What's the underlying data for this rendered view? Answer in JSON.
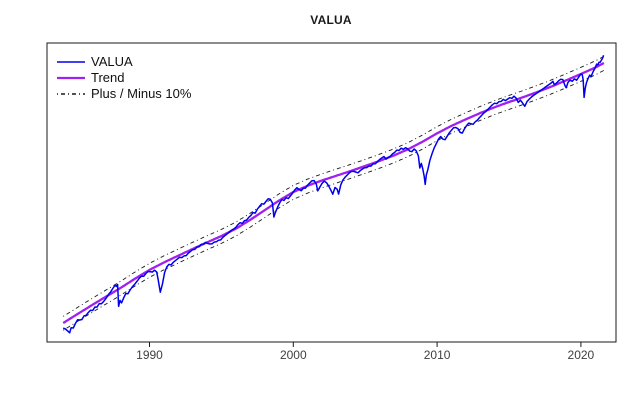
{
  "chart_data": {
    "type": "line",
    "title": "VALUA",
    "x_axis": {
      "ticks": [
        1990,
        2000,
        2010,
        2020
      ],
      "tick_labels": [
        "1990",
        "2000",
        "2010",
        "2020"
      ]
    },
    "y_axis": {
      "scale": "log",
      "labels_shown": false
    },
    "grid": false,
    "legend_position": "topleft",
    "band_pct": 10,
    "series": [
      {
        "name": "VALUA",
        "color": "#0000EE",
        "style": "solid",
        "width": 1.5
      },
      {
        "name": "Trend",
        "color": "#A020F0",
        "style": "solid",
        "width": 2.3
      },
      {
        "name": "Plus / Minus 10%",
        "color": "#1a1a1a",
        "style": "dotdash",
        "width": 0.9
      }
    ],
    "trend_points": [
      [
        1984,
        239
      ],
      [
        1985,
        272
      ],
      [
        1986,
        309
      ],
      [
        1987,
        350
      ],
      [
        1988,
        396
      ],
      [
        1989,
        452
      ],
      [
        1990,
        512
      ],
      [
        1991,
        570
      ],
      [
        1992,
        628
      ],
      [
        1993,
        692
      ],
      [
        1994,
        760
      ],
      [
        1995,
        833
      ],
      [
        1996,
        925
      ],
      [
        1997,
        1050
      ],
      [
        1998,
        1205
      ],
      [
        1999,
        1385
      ],
      [
        2000,
        1567
      ],
      [
        2001,
        1715
      ],
      [
        2002,
        1850
      ],
      [
        2003,
        1980
      ],
      [
        2004,
        2120
      ],
      [
        2005,
        2276
      ],
      [
        2006,
        2450
      ],
      [
        2007,
        2650
      ],
      [
        2008,
        2900
      ],
      [
        2009,
        3230
      ],
      [
        2010,
        3640
      ],
      [
        2011,
        4050
      ],
      [
        2012,
        4450
      ],
      [
        2013,
        4870
      ],
      [
        2014,
        5290
      ],
      [
        2015,
        5703
      ],
      [
        2016,
        6120
      ],
      [
        2017,
        6600
      ],
      [
        2018,
        7150
      ],
      [
        2019,
        7800
      ],
      [
        2020,
        8529
      ],
      [
        2021,
        9350
      ],
      [
        2021.6,
        9986
      ]
    ],
    "valua_dev_pct": [
      [
        1984.0,
        -7
      ],
      [
        1984.15,
        -10
      ],
      [
        1984.3,
        -14
      ],
      [
        1984.45,
        -18
      ],
      [
        1984.55,
        -13
      ],
      [
        1984.7,
        -15
      ],
      [
        1984.85,
        -11
      ],
      [
        1985.0,
        -8
      ],
      [
        1985.15,
        -10
      ],
      [
        1985.3,
        -11
      ],
      [
        1985.45,
        -8
      ],
      [
        1985.6,
        -9
      ],
      [
        1985.75,
        -7
      ],
      [
        1985.9,
        -6
      ],
      [
        1986.05,
        -8
      ],
      [
        1986.2,
        -5
      ],
      [
        1986.35,
        -7
      ],
      [
        1986.5,
        -4
      ],
      [
        1986.65,
        -6
      ],
      [
        1986.8,
        -5
      ],
      [
        1987.0,
        -2
      ],
      [
        1987.15,
        1
      ],
      [
        1987.3,
        3
      ],
      [
        1987.45,
        6
      ],
      [
        1987.6,
        9
      ],
      [
        1987.7,
        6
      ],
      [
        1987.78,
        8
      ],
      [
        1987.85,
        -22
      ],
      [
        1987.95,
        -16
      ],
      [
        1988.05,
        -20
      ],
      [
        1988.2,
        -16
      ],
      [
        1988.35,
        -12
      ],
      [
        1988.5,
        -14
      ],
      [
        1988.65,
        -11
      ],
      [
        1988.8,
        -9
      ],
      [
        1989.0,
        -7
      ],
      [
        1989.15,
        -5
      ],
      [
        1989.3,
        -3
      ],
      [
        1989.45,
        -2
      ],
      [
        1989.6,
        -4
      ],
      [
        1989.75,
        -2
      ],
      [
        1989.9,
        -1
      ],
      [
        1990.05,
        -3
      ],
      [
        1990.2,
        -5
      ],
      [
        1990.35,
        -4
      ],
      [
        1990.5,
        -8
      ],
      [
        1990.6,
        -18
      ],
      [
        1990.75,
        -33
      ],
      [
        1990.9,
        -26
      ],
      [
        1991.05,
        -14
      ],
      [
        1991.2,
        -8
      ],
      [
        1991.35,
        -6
      ],
      [
        1991.5,
        -8
      ],
      [
        1991.65,
        -6
      ],
      [
        1991.8,
        -5
      ],
      [
        1991.95,
        -4
      ],
      [
        1992.1,
        -3
      ],
      [
        1992.25,
        -5
      ],
      [
        1992.4,
        -4
      ],
      [
        1992.55,
        -5
      ],
      [
        1992.7,
        -3
      ],
      [
        1992.85,
        -2
      ],
      [
        1993.0,
        -1
      ],
      [
        1993.15,
        -2
      ],
      [
        1993.3,
        0
      ],
      [
        1993.45,
        -1
      ],
      [
        1993.6,
        1
      ],
      [
        1993.75,
        0
      ],
      [
        1993.9,
        1
      ],
      [
        1994.05,
        -2
      ],
      [
        1994.2,
        -4
      ],
      [
        1994.35,
        -5
      ],
      [
        1994.5,
        -4
      ],
      [
        1994.65,
        -5
      ],
      [
        1994.8,
        -4
      ],
      [
        1994.95,
        -5
      ],
      [
        1995.1,
        -3
      ],
      [
        1995.25,
        -2
      ],
      [
        1995.4,
        -1
      ],
      [
        1995.55,
        0
      ],
      [
        1995.7,
        1
      ],
      [
        1995.85,
        1
      ],
      [
        1996.0,
        2
      ],
      [
        1996.15,
        4
      ],
      [
        1996.3,
        5
      ],
      [
        1996.45,
        2
      ],
      [
        1996.6,
        4
      ],
      [
        1996.75,
        3
      ],
      [
        1996.9,
        5
      ],
      [
        1997.05,
        6
      ],
      [
        1997.2,
        8
      ],
      [
        1997.35,
        5
      ],
      [
        1997.5,
        9
      ],
      [
        1997.65,
        11
      ],
      [
        1997.8,
        13
      ],
      [
        1997.95,
        10
      ],
      [
        1998.1,
        12
      ],
      [
        1998.25,
        14
      ],
      [
        1998.4,
        11
      ],
      [
        1998.55,
        3
      ],
      [
        1998.65,
        -17
      ],
      [
        1998.75,
        -13
      ],
      [
        1998.9,
        -8
      ],
      [
        1999.05,
        -4
      ],
      [
        1999.2,
        -1
      ],
      [
        1999.35,
        -4
      ],
      [
        1999.5,
        -2
      ],
      [
        1999.65,
        -5
      ],
      [
        1999.8,
        -3
      ],
      [
        1999.95,
        -1
      ],
      [
        2000.1,
        2
      ],
      [
        2000.25,
        4
      ],
      [
        2000.4,
        0
      ],
      [
        2000.55,
        -3
      ],
      [
        2000.7,
        -1
      ],
      [
        2000.85,
        -2
      ],
      [
        2001.0,
        1
      ],
      [
        2001.15,
        3
      ],
      [
        2001.3,
        5
      ],
      [
        2001.45,
        4
      ],
      [
        2001.6,
        -2
      ],
      [
        2001.7,
        -12
      ],
      [
        2001.85,
        -8
      ],
      [
        2002.0,
        -4
      ],
      [
        2002.15,
        -2
      ],
      [
        2002.3,
        -5
      ],
      [
        2002.45,
        -10
      ],
      [
        2002.6,
        -16
      ],
      [
        2002.75,
        -22
      ],
      [
        2002.9,
        -15
      ],
      [
        2003.05,
        -18
      ],
      [
        2003.15,
        -24
      ],
      [
        2003.3,
        -14
      ],
      [
        2003.45,
        -9
      ],
      [
        2003.6,
        -6
      ],
      [
        2003.75,
        -4
      ],
      [
        2003.9,
        -2
      ],
      [
        2004.05,
        -1
      ],
      [
        2004.2,
        -2
      ],
      [
        2004.35,
        -4
      ],
      [
        2004.5,
        -6
      ],
      [
        2004.65,
        -4
      ],
      [
        2004.8,
        -3
      ],
      [
        2004.95,
        -2
      ],
      [
        2005.1,
        -3
      ],
      [
        2005.25,
        -2
      ],
      [
        2005.4,
        -3
      ],
      [
        2005.55,
        -1
      ],
      [
        2005.7,
        -2
      ],
      [
        2005.85,
        0
      ],
      [
        2006.0,
        2
      ],
      [
        2006.15,
        3
      ],
      [
        2006.3,
        4
      ],
      [
        2006.45,
        -1
      ],
      [
        2006.6,
        0
      ],
      [
        2006.75,
        1
      ],
      [
        2006.9,
        3
      ],
      [
        2007.05,
        4
      ],
      [
        2007.2,
        6
      ],
      [
        2007.35,
        4
      ],
      [
        2007.5,
        6
      ],
      [
        2007.65,
        3
      ],
      [
        2007.8,
        4
      ],
      [
        2007.95,
        1
      ],
      [
        2008.1,
        -4
      ],
      [
        2008.25,
        -6
      ],
      [
        2008.4,
        -4
      ],
      [
        2008.55,
        -8
      ],
      [
        2008.7,
        -16
      ],
      [
        2008.8,
        -30
      ],
      [
        2008.9,
        -26
      ],
      [
        2009.0,
        -32
      ],
      [
        2009.1,
        -40
      ],
      [
        2009.17,
        -47
      ],
      [
        2009.25,
        -40
      ],
      [
        2009.35,
        -36
      ],
      [
        2009.5,
        -28
      ],
      [
        2009.65,
        -22
      ],
      [
        2009.8,
        -17
      ],
      [
        2009.95,
        -13
      ],
      [
        2010.1,
        -9
      ],
      [
        2010.25,
        -7
      ],
      [
        2010.4,
        -12
      ],
      [
        2010.55,
        -14
      ],
      [
        2010.7,
        -11
      ],
      [
        2010.85,
        -8
      ],
      [
        2011.0,
        -6
      ],
      [
        2011.15,
        -4
      ],
      [
        2011.3,
        -5
      ],
      [
        2011.45,
        -8
      ],
      [
        2011.6,
        -14
      ],
      [
        2011.75,
        -16
      ],
      [
        2011.9,
        -12
      ],
      [
        2012.05,
        -9
      ],
      [
        2012.2,
        -7
      ],
      [
        2012.35,
        -9
      ],
      [
        2012.5,
        -11
      ],
      [
        2012.65,
        -9
      ],
      [
        2012.8,
        -8
      ],
      [
        2012.95,
        -6
      ],
      [
        2013.1,
        -4
      ],
      [
        2013.25,
        -2
      ],
      [
        2013.4,
        -1
      ],
      [
        2013.55,
        1
      ],
      [
        2013.7,
        3
      ],
      [
        2013.85,
        5
      ],
      [
        2014.0,
        6
      ],
      [
        2014.15,
        4
      ],
      [
        2014.3,
        6
      ],
      [
        2014.45,
        5
      ],
      [
        2014.6,
        7
      ],
      [
        2014.75,
        4
      ],
      [
        2014.9,
        5
      ],
      [
        2015.05,
        6
      ],
      [
        2015.2,
        4
      ],
      [
        2015.35,
        6
      ],
      [
        2015.5,
        2
      ],
      [
        2015.65,
        -5
      ],
      [
        2015.8,
        -3
      ],
      [
        2015.95,
        -8
      ],
      [
        2016.1,
        -13
      ],
      [
        2016.25,
        -8
      ],
      [
        2016.4,
        -6
      ],
      [
        2016.55,
        -4
      ],
      [
        2016.7,
        -3
      ],
      [
        2016.85,
        -2
      ],
      [
        2017.0,
        -1
      ],
      [
        2017.15,
        0
      ],
      [
        2017.3,
        1
      ],
      [
        2017.45,
        2
      ],
      [
        2017.6,
        3
      ],
      [
        2017.75,
        4
      ],
      [
        2017.9,
        5
      ],
      [
        2018.05,
        7
      ],
      [
        2018.15,
        1
      ],
      [
        2018.3,
        2
      ],
      [
        2018.45,
        4
      ],
      [
        2018.6,
        5
      ],
      [
        2018.75,
        3
      ],
      [
        2018.9,
        -7
      ],
      [
        2018.98,
        -10
      ],
      [
        2019.1,
        -4
      ],
      [
        2019.25,
        -2
      ],
      [
        2019.4,
        -5
      ],
      [
        2019.55,
        -3
      ],
      [
        2019.7,
        -6
      ],
      [
        2019.85,
        -3
      ],
      [
        2020.0,
        0
      ],
      [
        2020.1,
        -2
      ],
      [
        2020.16,
        -10
      ],
      [
        2020.22,
        -30
      ],
      [
        2020.3,
        -21
      ],
      [
        2020.38,
        -15
      ],
      [
        2020.46,
        -12
      ],
      [
        2020.54,
        -9
      ],
      [
        2020.62,
        -7
      ],
      [
        2020.7,
        -10
      ],
      [
        2020.78,
        -7
      ],
      [
        2020.86,
        -4
      ],
      [
        2020.94,
        -2
      ],
      [
        2021.02,
        1
      ],
      [
        2021.1,
        4
      ],
      [
        2021.18,
        2
      ],
      [
        2021.26,
        5
      ],
      [
        2021.34,
        4
      ],
      [
        2021.42,
        6
      ],
      [
        2021.5,
        8
      ],
      [
        2021.58,
        12
      ]
    ],
    "note": "Blue VALUA value = trend value x (1 + dev_pct/100); dashed lines are trend x 1.1 and trend x 0.9; log y-scale with no y-axis labels shown"
  }
}
